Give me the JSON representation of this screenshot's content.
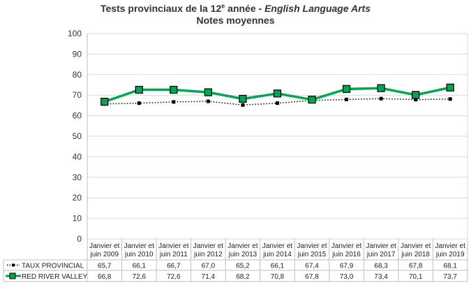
{
  "title": {
    "line1_prefix": "Tests provinciaux de la 12",
    "line1_sup": "e",
    "line1_mid": " année - ",
    "line1_italic": "English Language Arts",
    "line2": "Notes moyennes"
  },
  "colors": {
    "provincial": "#000000",
    "school_line": "#00a651",
    "school_marker": "#00a651"
  },
  "chart_data": {
    "type": "line",
    "ylim": [
      0,
      100
    ],
    "yticks": [
      0,
      10,
      20,
      30,
      40,
      50,
      60,
      70,
      80,
      90,
      100
    ],
    "grid": true,
    "categories": [
      [
        "Janvier et",
        "juin 2009"
      ],
      [
        "Janvier et",
        "juin 2010"
      ],
      [
        "Janvier et",
        "juin 2011"
      ],
      [
        "Janvier et",
        "juin 2012"
      ],
      [
        "Janvier et",
        "juin 2013"
      ],
      [
        "Janvier et",
        "juin 2014"
      ],
      [
        "Janvier et",
        "juin 2015"
      ],
      [
        "Janvier et",
        "juin 2016"
      ],
      [
        "Janvier et",
        "juin 2017"
      ],
      [
        "Janvier et",
        "juin 2018"
      ],
      [
        "Janvier et",
        "juin 2019"
      ]
    ],
    "series": [
      {
        "name": "TAUX PROVINCIAL",
        "values": [
          65.7,
          66.1,
          66.7,
          67.0,
          65.2,
          66.1,
          67.4,
          67.9,
          68.3,
          67.8,
          68.1
        ],
        "labels": [
          "65,7",
          "66,1",
          "66,7",
          "67,0",
          "65,2",
          "66,1",
          "67,4",
          "67,9",
          "68,3",
          "67,8",
          "68,1"
        ]
      },
      {
        "name": "RED RIVER VALLEY",
        "values": [
          66.8,
          72.6,
          72.6,
          71.4,
          68.2,
          70.8,
          67.8,
          73.0,
          73.4,
          70.1,
          73.7
        ],
        "labels": [
          "66,8",
          "72,6",
          "72,6",
          "71,4",
          "68,2",
          "70,8",
          "67,8",
          "73,0",
          "73,4",
          "70,1",
          "73,7"
        ]
      }
    ]
  }
}
